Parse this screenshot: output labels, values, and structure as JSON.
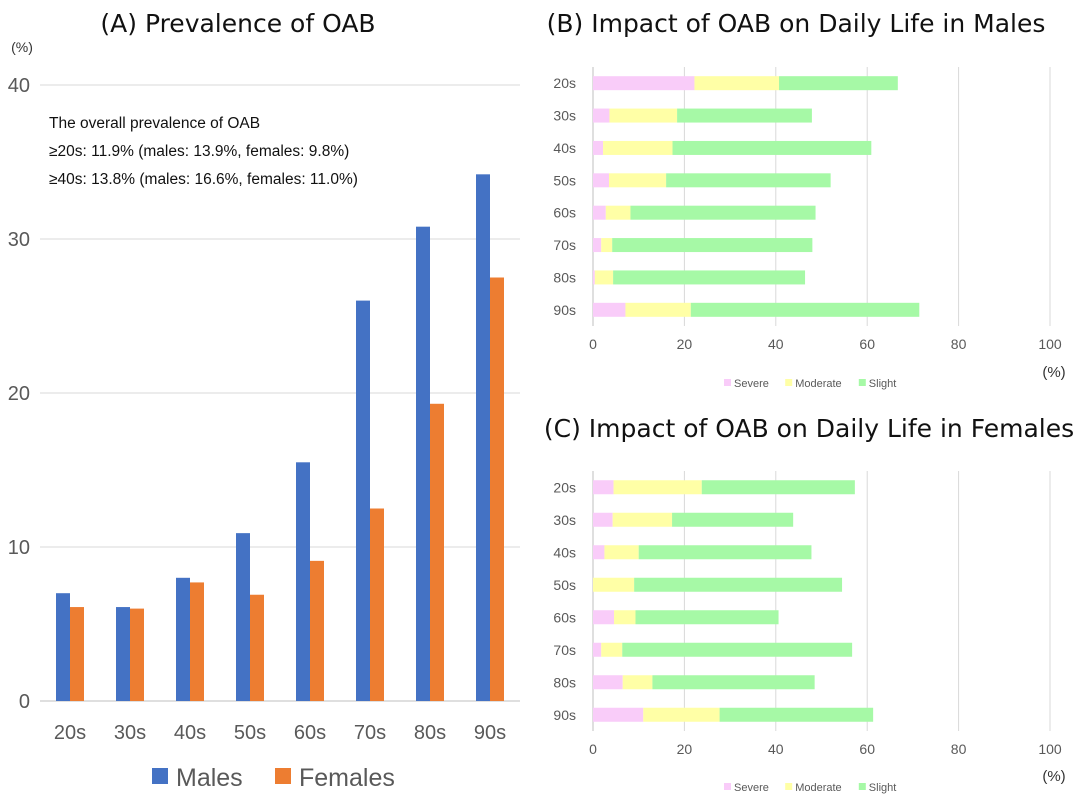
{
  "colors": {
    "males": "#4472C4",
    "females": "#ED7D31",
    "severe": "#F9CCF9",
    "moderate": "#FFFFA6",
    "slight": "#A6F9A6"
  },
  "chart_data": [
    {
      "type": "bar",
      "title": "(A) Prevalence of OAB",
      "unit": "(%)",
      "categories": [
        "20s",
        "30s",
        "40s",
        "50s",
        "60s",
        "70s",
        "80s",
        "90s"
      ],
      "series": [
        {
          "name": "Males",
          "values": [
            7.0,
            6.1,
            8.0,
            10.9,
            15.5,
            26.0,
            30.8,
            34.2
          ]
        },
        {
          "name": "Females",
          "values": [
            6.1,
            6.0,
            7.7,
            6.9,
            9.1,
            12.5,
            19.3,
            27.5
          ]
        }
      ],
      "ylim": [
        0,
        40
      ],
      "yticks": [
        "0",
        "10",
        "20",
        "30",
        "40"
      ],
      "grid": true,
      "legend": "bottom",
      "annotations": [
        "The overall prevalence of OAB",
        "≥20s: 11.9% (males: 13.9%, females: 9.8%)",
        "≥40s: 13.8% (males: 16.6%, females: 11.0%)"
      ]
    },
    {
      "type": "bar",
      "orientation": "horizontal",
      "stacked": true,
      "title": "(B) Impact of OAB on Daily Life in Males",
      "unit": "(%)",
      "categories": [
        "20s",
        "30s",
        "40s",
        "50s",
        "60s",
        "70s",
        "80s",
        "90s"
      ],
      "series": [
        {
          "name": "Severe",
          "values": [
            22.2,
            3.6,
            2.2,
            3.5,
            2.8,
            1.8,
            0.4,
            7.1
          ]
        },
        {
          "name": "Moderate",
          "values": [
            18.5,
            14.8,
            15.2,
            12.5,
            5.4,
            2.4,
            4.0,
            14.3
          ]
        },
        {
          "name": "Slight",
          "values": [
            26.0,
            29.5,
            43.5,
            36.0,
            40.5,
            43.8,
            42.0,
            50.0
          ]
        }
      ],
      "xlim": [
        0,
        100
      ],
      "xticks": [
        "0",
        "20",
        "40",
        "60",
        "80",
        "100"
      ],
      "grid": true,
      "legend": "bottom"
    },
    {
      "type": "bar",
      "orientation": "horizontal",
      "stacked": true,
      "title": "(C) Impact of OAB on Daily Life in Females",
      "unit": "(%)",
      "categories": [
        "20s",
        "30s",
        "40s",
        "50s",
        "60s",
        "70s",
        "80s",
        "90s"
      ],
      "series": [
        {
          "name": "Severe",
          "values": [
            4.5,
            4.3,
            2.5,
            0.0,
            4.6,
            1.8,
            6.5,
            11.0
          ]
        },
        {
          "name": "Moderate",
          "values": [
            19.3,
            13.0,
            7.5,
            9.0,
            4.7,
            4.6,
            6.5,
            16.7
          ]
        },
        {
          "name": "Slight",
          "values": [
            33.5,
            26.5,
            37.8,
            45.5,
            31.3,
            50.3,
            35.5,
            33.6
          ]
        }
      ],
      "xlim": [
        0,
        100
      ],
      "xticks": [
        "0",
        "20",
        "40",
        "60",
        "80",
        "100"
      ],
      "grid": true,
      "legend": "bottom"
    }
  ]
}
